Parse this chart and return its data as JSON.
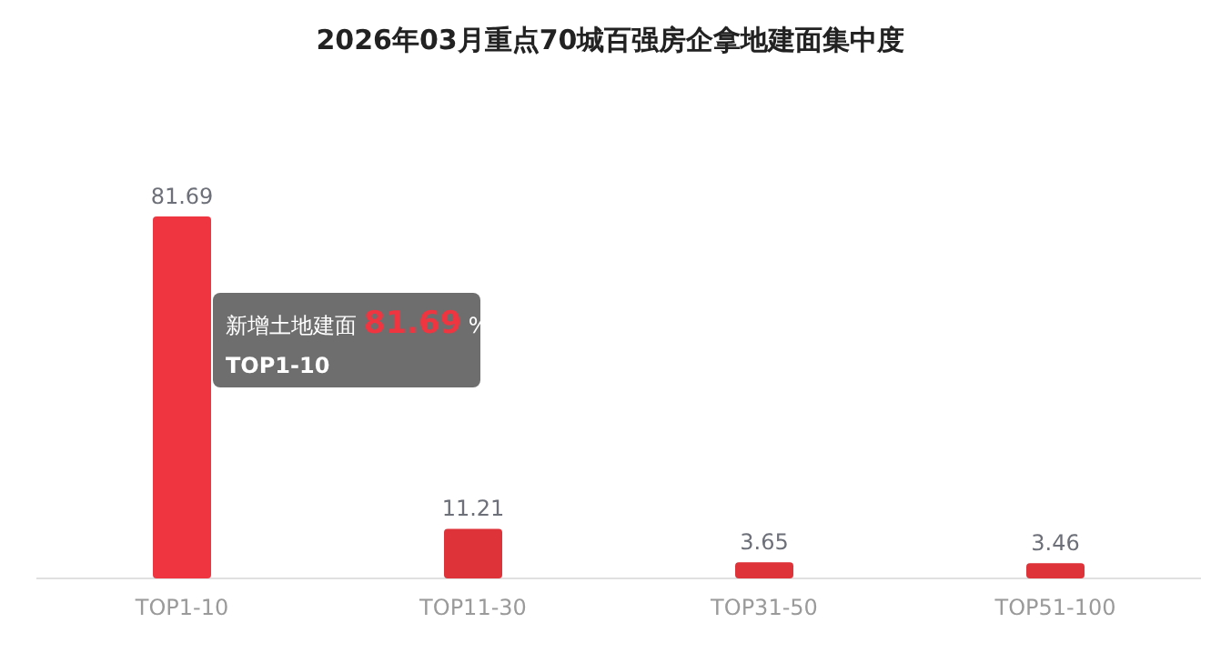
{
  "chart_data": {
    "type": "bar",
    "title": "2026年03月重点70城百强房企拿地建面集中度",
    "categories": [
      "TOP1-10",
      "TOP11-30",
      "TOP31-50",
      "TOP51-100"
    ],
    "values": [
      81.69,
      11.21,
      3.65,
      3.46
    ],
    "colors": [
      "#ef3540",
      "#dd3339",
      "#dd3339",
      "#dd3339"
    ],
    "data_labels": true,
    "annotations": [
      "新增土地建面 **81.69** %",
      "TOP1-10"
    ]
  }
}
